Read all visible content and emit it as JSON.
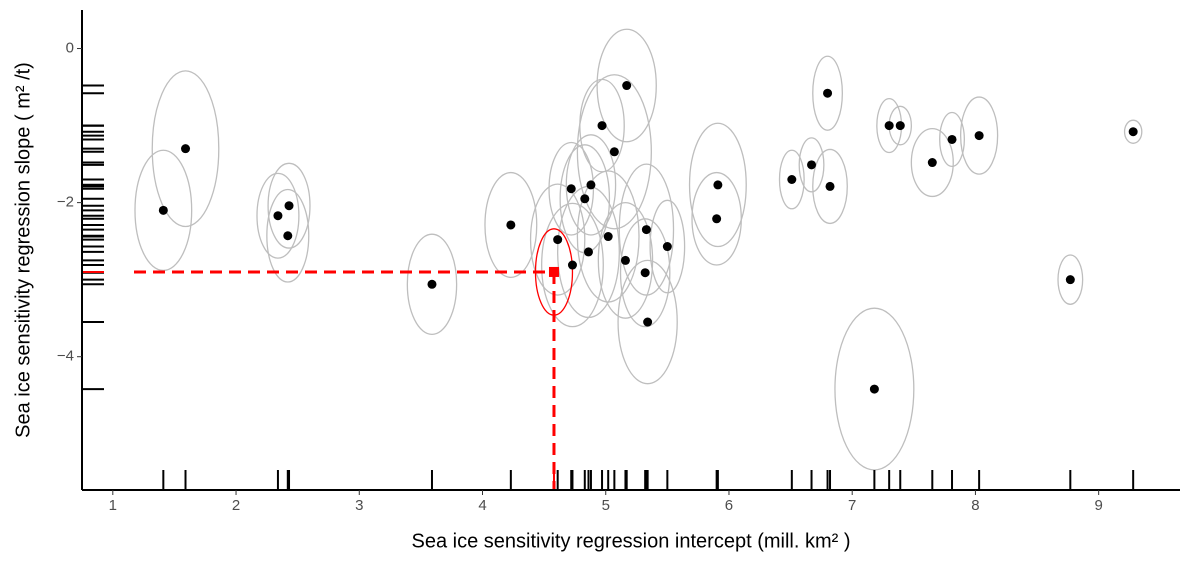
{
  "chart_data": {
    "type": "scatter",
    "x_label": "Sea ice sensitivity regression intercept (mill.  km² )",
    "y_label": "Sea ice sensitivity regression slope ( m² /t)",
    "xlim": [
      0.75,
      9.66
    ],
    "ylim": [
      -5.73,
      0.5
    ],
    "xticks": [
      1,
      2,
      3,
      4,
      5,
      6,
      7,
      8,
      9
    ],
    "yticks": [
      {
        "value": 0,
        "label": "0"
      },
      {
        "value": -2,
        "label": "−2"
      },
      {
        "value": -4,
        "label": "−4"
      }
    ],
    "color": "#000000",
    "ellipse_color": "#bebebe",
    "rug_color": "#000000",
    "x": [
      1.41,
      1.59,
      2.34,
      2.43,
      2.42,
      3.59,
      4.23,
      4.61,
      4.72,
      4.73,
      4.83,
      4.88,
      4.86,
      4.97,
      5.02,
      5.07,
      5.17,
      5.16,
      5.33,
      5.32,
      5.34,
      5.5,
      5.91,
      5.9,
      6.51,
      6.67,
      6.8,
      6.82,
      7.18,
      7.3,
      7.39,
      7.65,
      7.81,
      8.03,
      8.77,
      9.28
    ],
    "y": [
      -2.1,
      -1.3,
      -2.17,
      -2.04,
      -2.43,
      -3.06,
      -2.29,
      -2.48,
      -1.82,
      -2.81,
      -1.95,
      -1.77,
      -2.64,
      -1.0,
      -2.44,
      -1.34,
      -0.48,
      -2.75,
      -2.35,
      -2.91,
      -3.55,
      -2.57,
      -1.77,
      -2.21,
      -1.7,
      -1.51,
      -0.58,
      -1.79,
      -4.42,
      -1.0,
      -1.0,
      -1.48,
      -1.18,
      -1.13,
      -3.0,
      -1.08
    ],
    "x_radius": [
      0.23,
      0.27,
      0.17,
      0.17,
      0.17,
      0.2,
      0.21,
      0.22,
      0.18,
      0.25,
      0.2,
      0.2,
      0.25,
      0.18,
      0.25,
      0.3,
      0.24,
      0.22,
      0.22,
      0.2,
      0.24,
      0.14,
      0.23,
      0.2,
      0.1,
      0.1,
      0.12,
      0.14,
      0.32,
      0.1,
      0.09,
      0.17,
      0.1,
      0.15,
      0.1,
      0.07
    ],
    "y_radius": [
      0.78,
      1.01,
      0.55,
      0.55,
      0.6,
      0.65,
      0.68,
      0.72,
      0.6,
      0.8,
      0.7,
      0.65,
      0.85,
      0.6,
      0.85,
      1.0,
      0.73,
      0.75,
      0.85,
      0.7,
      0.8,
      0.6,
      0.8,
      0.6,
      0.38,
      0.35,
      0.48,
      0.48,
      1.05,
      0.35,
      0.25,
      0.44,
      0.35,
      0.5,
      0.32,
      0.15
    ],
    "highlight": {
      "x": 4.58,
      "y": -2.9,
      "x_radius": 0.15,
      "y_radius": 0.56,
      "color": "#ff0000"
    }
  }
}
